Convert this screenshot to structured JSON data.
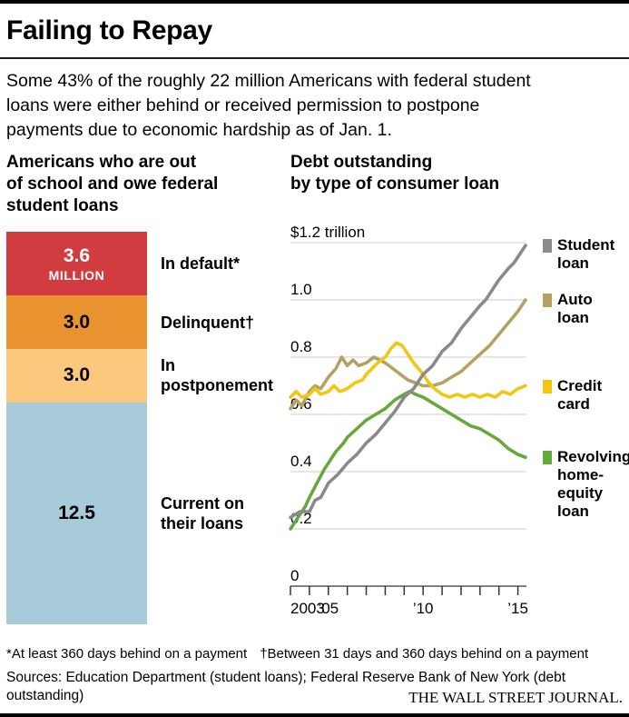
{
  "header": {
    "title": "Failing to Repay",
    "subtitle_lines": [
      "Some 43% of the roughly 22 million Americans with federal student",
      "loans were either behind or received permission to postpone",
      "payments due to economic hardship as of Jan. 1."
    ]
  },
  "left_panel": {
    "heading_lines": [
      "Americans who are out",
      "of school and owe federal",
      "student loans"
    ]
  },
  "right_panel": {
    "heading_lines": [
      "Debt outstanding",
      "by type of consumer loan"
    ]
  },
  "chart_data": [
    {
      "type": "bar",
      "title": "Americans who are out of school and owe federal student loans",
      "unit": "million people",
      "segments": [
        {
          "label": "In default*",
          "value": 3.6,
          "value_label": "3.6",
          "unit_label": "MILLION",
          "color": "#d13c40",
          "text_color": "#ffffff"
        },
        {
          "label": "Delinquent†",
          "value": 3.0,
          "value_label": "3.0",
          "color": "#e8932f",
          "text_color": "#000000"
        },
        {
          "label": "In postponement",
          "value": 3.0,
          "value_label": "3.0",
          "color": "#fac97e",
          "text_color": "#000000"
        },
        {
          "label": "Current on their loans",
          "value": 12.5,
          "value_label": "12.5",
          "color": "#a7cbd9",
          "text_color": "#000000"
        }
      ]
    },
    {
      "type": "line",
      "title": "Debt outstanding by type of consumer loan",
      "unit": "trillion dollars",
      "x_range": [
        2003,
        2015.45
      ],
      "y_range": [
        0,
        1.2
      ],
      "grid": true,
      "legend_position": "right",
      "y_ticks": [
        {
          "value": 1.2,
          "label": "$1.2 trillion"
        },
        {
          "value": 1.0,
          "label": "1.0"
        },
        {
          "value": 0.8,
          "label": "0.8"
        },
        {
          "value": 0.6,
          "label": "0.6"
        },
        {
          "value": 0.4,
          "label": "0.4"
        },
        {
          "value": 0.2,
          "label": "0.2"
        },
        {
          "value": 0,
          "label": "0"
        }
      ],
      "x_ticks": [
        {
          "value": 2003,
          "label": "2003",
          "align": "start"
        },
        {
          "value": 2005,
          "label": "’05"
        },
        {
          "value": 2010,
          "label": "’10"
        },
        {
          "value": 2015,
          "label": "’15"
        }
      ],
      "series": [
        {
          "name": "Student loan",
          "label_lines": [
            "Student",
            "loan"
          ],
          "color": "#8a8a8a",
          "z": 4,
          "points": [
            [
              2003,
              0.24
            ],
            [
              2003.5,
              0.26
            ],
            [
              2004,
              0.26
            ],
            [
              2004.3,
              0.3
            ],
            [
              2004.6,
              0.31
            ],
            [
              2005,
              0.36
            ],
            [
              2005.5,
              0.39
            ],
            [
              2006,
              0.43
            ],
            [
              2006.5,
              0.46
            ],
            [
              2007,
              0.5
            ],
            [
              2007.5,
              0.53
            ],
            [
              2008,
              0.57
            ],
            [
              2008.5,
              0.61
            ],
            [
              2009,
              0.66
            ],
            [
              2009.5,
              0.69
            ],
            [
              2010,
              0.74
            ],
            [
              2010.5,
              0.77
            ],
            [
              2011,
              0.82
            ],
            [
              2011.5,
              0.85
            ],
            [
              2012,
              0.9
            ],
            [
              2012.5,
              0.94
            ],
            [
              2013,
              0.98
            ],
            [
              2013.3,
              1.0
            ],
            [
              2013.6,
              1.03
            ],
            [
              2014,
              1.07
            ],
            [
              2014.5,
              1.11
            ],
            [
              2014.8,
              1.13
            ],
            [
              2015,
              1.15
            ],
            [
              2015.4,
              1.19
            ]
          ]
        },
        {
          "name": "Auto loan",
          "label_lines": [
            "Auto",
            "loan"
          ],
          "color": "#b3a263",
          "z": 1,
          "points": [
            [
              2003,
              0.62
            ],
            [
              2003.3,
              0.65
            ],
            [
              2003.6,
              0.63
            ],
            [
              2004,
              0.68
            ],
            [
              2004.3,
              0.7
            ],
            [
              2004.6,
              0.69
            ],
            [
              2005,
              0.73
            ],
            [
              2005.4,
              0.76
            ],
            [
              2005.7,
              0.8
            ],
            [
              2006,
              0.77
            ],
            [
              2006.3,
              0.79
            ],
            [
              2006.6,
              0.77
            ],
            [
              2007,
              0.78
            ],
            [
              2007.4,
              0.8
            ],
            [
              2007.7,
              0.79
            ],
            [
              2008,
              0.78
            ],
            [
              2008.4,
              0.76
            ],
            [
              2008.8,
              0.74
            ],
            [
              2009.2,
              0.72
            ],
            [
              2009.6,
              0.71
            ],
            [
              2010,
              0.7
            ],
            [
              2010.5,
              0.7
            ],
            [
              2011,
              0.71
            ],
            [
              2011.5,
              0.73
            ],
            [
              2012,
              0.75
            ],
            [
              2012.5,
              0.78
            ],
            [
              2013,
              0.81
            ],
            [
              2013.5,
              0.84
            ],
            [
              2014,
              0.88
            ],
            [
              2014.5,
              0.92
            ],
            [
              2015,
              0.96
            ],
            [
              2015.4,
              1.0
            ]
          ]
        },
        {
          "name": "Credit card",
          "label_lines": [
            "Credit",
            "card"
          ],
          "color": "#f2c714",
          "z": 3,
          "points": [
            [
              2003,
              0.66
            ],
            [
              2003.3,
              0.68
            ],
            [
              2003.6,
              0.66
            ],
            [
              2004,
              0.67
            ],
            [
              2004.3,
              0.69
            ],
            [
              2004.6,
              0.67
            ],
            [
              2005,
              0.68
            ],
            [
              2005.3,
              0.7
            ],
            [
              2005.6,
              0.68
            ],
            [
              2006,
              0.69
            ],
            [
              2006.4,
              0.71
            ],
            [
              2006.8,
              0.72
            ],
            [
              2007,
              0.74
            ],
            [
              2007.3,
              0.76
            ],
            [
              2007.6,
              0.78
            ],
            [
              2008,
              0.8
            ],
            [
              2008.3,
              0.83
            ],
            [
              2008.6,
              0.85
            ],
            [
              2008.9,
              0.84
            ],
            [
              2009.2,
              0.81
            ],
            [
              2009.5,
              0.78
            ],
            [
              2010,
              0.74
            ],
            [
              2010.3,
              0.71
            ],
            [
              2010.6,
              0.69
            ],
            [
              2011,
              0.67
            ],
            [
              2011.4,
              0.66
            ],
            [
              2011.8,
              0.67
            ],
            [
              2012.2,
              0.66
            ],
            [
              2012.6,
              0.67
            ],
            [
              2013,
              0.66
            ],
            [
              2013.4,
              0.67
            ],
            [
              2013.8,
              0.66
            ],
            [
              2014.2,
              0.68
            ],
            [
              2014.6,
              0.67
            ],
            [
              2015,
              0.69
            ],
            [
              2015.4,
              0.7
            ]
          ]
        },
        {
          "name": "Revolving home-equity loan",
          "label_lines": [
            "Revolving",
            "home-",
            "equity",
            "loan"
          ],
          "color": "#65a83c",
          "z": 2,
          "points": [
            [
              2003,
              0.2
            ],
            [
              2003.4,
              0.24
            ],
            [
              2003.8,
              0.28
            ],
            [
              2004,
              0.31
            ],
            [
              2004.4,
              0.36
            ],
            [
              2004.8,
              0.41
            ],
            [
              2005,
              0.43
            ],
            [
              2005.4,
              0.47
            ],
            [
              2005.8,
              0.5
            ],
            [
              2006,
              0.52
            ],
            [
              2006.5,
              0.55
            ],
            [
              2007,
              0.58
            ],
            [
              2007.5,
              0.6
            ],
            [
              2008,
              0.62
            ],
            [
              2008.5,
              0.65
            ],
            [
              2009,
              0.67
            ],
            [
              2009.3,
              0.68
            ],
            [
              2009.6,
              0.67
            ],
            [
              2010,
              0.66
            ],
            [
              2010.5,
              0.64
            ],
            [
              2011,
              0.62
            ],
            [
              2011.5,
              0.6
            ],
            [
              2012,
              0.58
            ],
            [
              2012.5,
              0.56
            ],
            [
              2013,
              0.55
            ],
            [
              2013.5,
              0.53
            ],
            [
              2014,
              0.51
            ],
            [
              2014.5,
              0.48
            ],
            [
              2015,
              0.46
            ],
            [
              2015.4,
              0.45
            ]
          ]
        }
      ]
    }
  ],
  "footer": {
    "footnotes": [
      "*At least 360 days behind on a payment",
      "†Between 31 days and 360 days behind on a payment"
    ],
    "sources": "Sources: Education Department (student loans); Federal Reserve Bank of New York (debt outstanding)",
    "brand": "THE WALL STREET JOURNAL."
  },
  "colors": {
    "accent_red": "#d13c40",
    "accent_orange": "#e8932f",
    "accent_light_orange": "#fac97e",
    "accent_blue": "#a7cbd9",
    "grid": "#cccccc",
    "axis": "#333333"
  }
}
